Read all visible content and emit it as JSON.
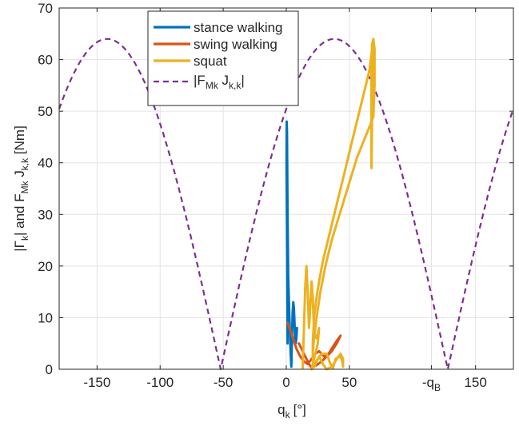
{
  "chart_data": {
    "type": "line",
    "xlabel_main": "q",
    "xlabel_sub": "k",
    "xlabel_unit": "[°]",
    "ylabel_parts": [
      "|Γ",
      "k",
      "| and F",
      "Mk",
      " J",
      "k,k",
      " [Nm]"
    ],
    "xlim": [
      -180,
      180
    ],
    "ylim": [
      0,
      70
    ],
    "xticks": [
      -150,
      -100,
      -50,
      0,
      50,
      150
    ],
    "xtick_labels": [
      "-150",
      "-100",
      "-50",
      "0",
      "50",
      "150"
    ],
    "special_xtick": {
      "value": 115,
      "label_main": "-q",
      "label_sub": "B"
    },
    "yticks": [
      0,
      10,
      20,
      30,
      40,
      50,
      60,
      70
    ],
    "ytick_labels": [
      "0",
      "10",
      "20",
      "30",
      "40",
      "50",
      "60",
      "70"
    ],
    "grid": true,
    "legend_position": "top-center",
    "legend_labels": [
      "stance walking",
      "swing walking",
      "squat"
    ],
    "legend_dashed_main": "|F",
    "legend_dashed_sub1": "Mk",
    "legend_dashed_mid": " J",
    "legend_dashed_sub2": "k,k",
    "legend_dashed_tail": "|",
    "series": [
      {
        "name": "stance walking",
        "color": "#0072BD",
        "style": "solid",
        "points": [
          [
            1,
            5
          ],
          [
            0.8,
            15
          ],
          [
            0.5,
            28
          ],
          [
            0.2,
            40
          ],
          [
            0.3,
            48
          ],
          [
            0.6,
            46
          ],
          [
            1,
            30
          ],
          [
            1.5,
            18
          ],
          [
            2.5,
            10
          ],
          [
            3.5,
            3
          ],
          [
            4,
            0.5
          ],
          [
            4.5,
            6
          ],
          [
            5,
            11
          ],
          [
            5.5,
            13
          ],
          [
            6,
            12
          ],
          [
            6.5,
            9
          ],
          [
            7,
            6
          ],
          [
            7.5,
            5
          ],
          [
            8,
            6
          ],
          [
            8.5,
            8
          ],
          [
            8,
            7.5
          ]
        ]
      },
      {
        "name": "swing walking",
        "color": "#D95319",
        "style": "solid",
        "points": [
          [
            1,
            9
          ],
          [
            4,
            7
          ],
          [
            8,
            4
          ],
          [
            11,
            2.5
          ],
          [
            14,
            1.5
          ],
          [
            17,
            1
          ],
          [
            20,
            2
          ],
          [
            23,
            3
          ],
          [
            26,
            3.5
          ],
          [
            30,
            2.5
          ],
          [
            33,
            2.8
          ],
          [
            36,
            4
          ],
          [
            40,
            5.5
          ],
          [
            43,
            6.5
          ],
          [
            40,
            5
          ],
          [
            36,
            3.5
          ],
          [
            32,
            2.5
          ],
          [
            28,
            1.5
          ],
          [
            24,
            0.8
          ],
          [
            20,
            0.3
          ],
          [
            18,
            1
          ],
          [
            16,
            2
          ],
          [
            13,
            3.5
          ],
          [
            10,
            5
          ]
        ]
      },
      {
        "name": "squat",
        "color": "#EDB120",
        "style": "solid",
        "points": [
          [
            13,
            0.3
          ],
          [
            14,
            8
          ],
          [
            15,
            16
          ],
          [
            16,
            20
          ],
          [
            17,
            15
          ],
          [
            18,
            8
          ],
          [
            19,
            12
          ],
          [
            20,
            17
          ],
          [
            21,
            14
          ],
          [
            22,
            7
          ],
          [
            24,
            6
          ],
          [
            26,
            8
          ],
          [
            25,
            5
          ],
          [
            23,
            3
          ],
          [
            21,
            1
          ],
          [
            20,
            0
          ],
          [
            22,
            1
          ],
          [
            25,
            2
          ],
          [
            28,
            3
          ],
          [
            32,
            3
          ],
          [
            35,
            1
          ],
          [
            37,
            0.2
          ],
          [
            39,
            2
          ],
          [
            42,
            2.5
          ],
          [
            44,
            2
          ],
          [
            45,
            0.5
          ],
          [
            45,
            2
          ],
          [
            43,
            3
          ],
          [
            40,
            2
          ],
          [
            36,
            0.5
          ],
          [
            32,
            0
          ],
          [
            29,
            1
          ],
          [
            26,
            2.5
          ],
          [
            24,
            1.5
          ],
          [
            22,
            0.4
          ],
          [
            21,
            2
          ],
          [
            21,
            3
          ],
          [
            22,
            6
          ],
          [
            24,
            10
          ],
          [
            27,
            15
          ],
          [
            31,
            20
          ],
          [
            36,
            25
          ],
          [
            41,
            29
          ],
          [
            46,
            33
          ],
          [
            51,
            37
          ],
          [
            56,
            41
          ],
          [
            61,
            44
          ],
          [
            66,
            47
          ],
          [
            69,
            49
          ],
          [
            70,
            55
          ],
          [
            70,
            62
          ],
          [
            69,
            64
          ],
          [
            68,
            63
          ],
          [
            67.5,
            58
          ],
          [
            67.5,
            50
          ],
          [
            67.5,
            42
          ],
          [
            67.5,
            39
          ],
          [
            67.8,
            45
          ],
          [
            68,
            52
          ],
          [
            68.5,
            58
          ],
          [
            69,
            61
          ],
          [
            69,
            64
          ],
          [
            68.5,
            63
          ],
          [
            66,
            58
          ],
          [
            62,
            54
          ],
          [
            57,
            49
          ],
          [
            52,
            44
          ],
          [
            47,
            39
          ],
          [
            42,
            34
          ],
          [
            37,
            29
          ],
          [
            33,
            25
          ],
          [
            29,
            21
          ],
          [
            26,
            17
          ],
          [
            24,
            14
          ],
          [
            22,
            10
          ],
          [
            21,
            5
          ],
          [
            21,
            2
          ]
        ]
      },
      {
        "name": "|F_Mk J_k,k|",
        "color": "#7E2F8E",
        "style": "dashed",
        "function": "abs_sine",
        "amplitude": 64,
        "phase_deg": 52,
        "samples": 361
      }
    ]
  }
}
